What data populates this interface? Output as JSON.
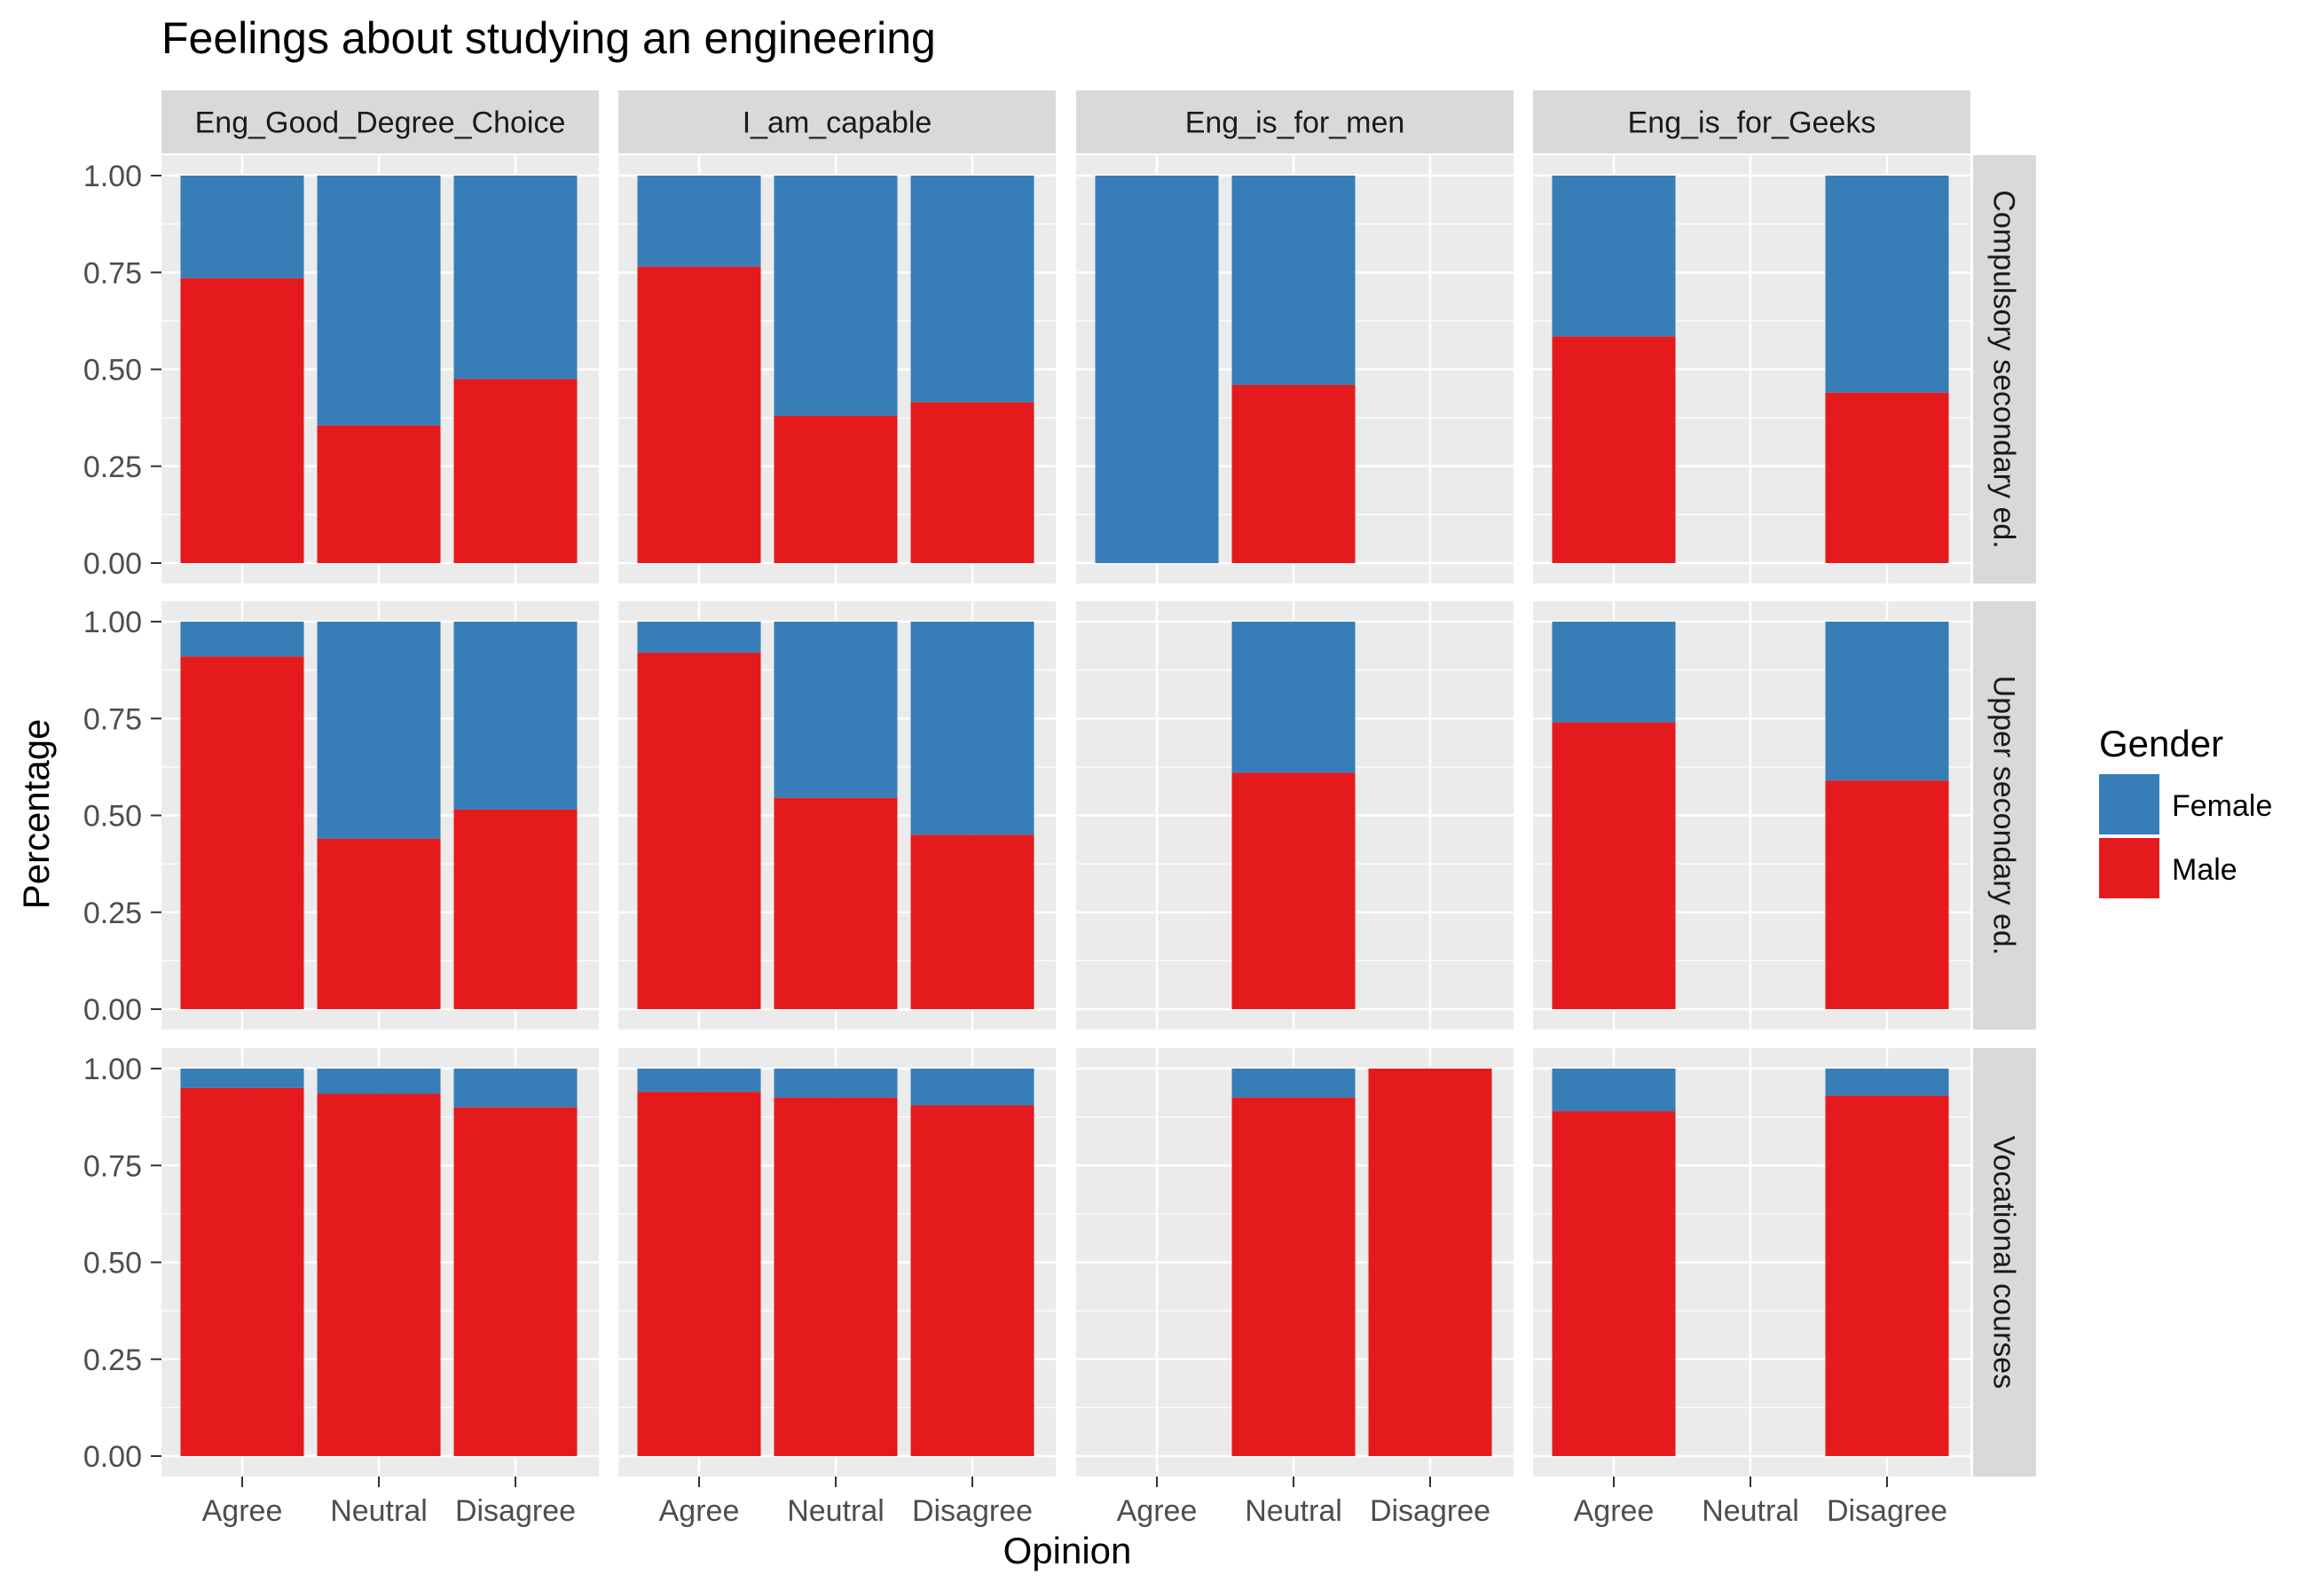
{
  "chart_data": {
    "type": "bar",
    "subtype": "stacked-proportion-facet-grid",
    "title": "Feelings about studying an engineering",
    "xlabel": "Opinion",
    "ylabel": "Percentage",
    "ylim": [
      0,
      1
    ],
    "yticks": [
      "0.00",
      "0.25",
      "0.50",
      "0.75",
      "1.00"
    ],
    "categories": [
      "Agree",
      "Neutral",
      "Disagree"
    ],
    "facet_columns": [
      "Eng_Good_Degree_Choice",
      "I_am_capable",
      "Eng_is_for_men",
      "Eng_is_for_Geeks"
    ],
    "facet_rows": [
      "Compulsory secondary ed.",
      "Upper secondary ed.",
      "Vocational courses"
    ],
    "legend": {
      "title": "Gender",
      "position": "right",
      "items": [
        {
          "name": "Female",
          "color": "#377EB8"
        },
        {
          "name": "Male",
          "color": "#E41A1C"
        }
      ]
    },
    "colors": {
      "Female": "#377EB8",
      "Male": "#E41A1C",
      "panel_background": "#EBEBEB",
      "strip_background": "#D9D9D9",
      "grid": "#FFFFFF"
    },
    "grid": true,
    "note_values": "male share of each bar; female share = 1 - male; null = no bar",
    "male_share": [
      [
        [
          0.735,
          0.355,
          0.475
        ],
        [
          0.765,
          0.38,
          0.415
        ],
        [
          0.0,
          0.46,
          null
        ],
        [
          0.585,
          null,
          0.44
        ]
      ],
      [
        [
          0.91,
          0.44,
          0.515
        ],
        [
          0.92,
          0.545,
          0.45
        ],
        [
          null,
          0.61,
          null
        ],
        [
          0.74,
          null,
          0.59
        ]
      ],
      [
        [
          0.95,
          0.935,
          0.9
        ],
        [
          0.94,
          0.925,
          0.905
        ],
        [
          null,
          0.925,
          1.0
        ],
        [
          0.89,
          null,
          0.93
        ]
      ]
    ]
  }
}
